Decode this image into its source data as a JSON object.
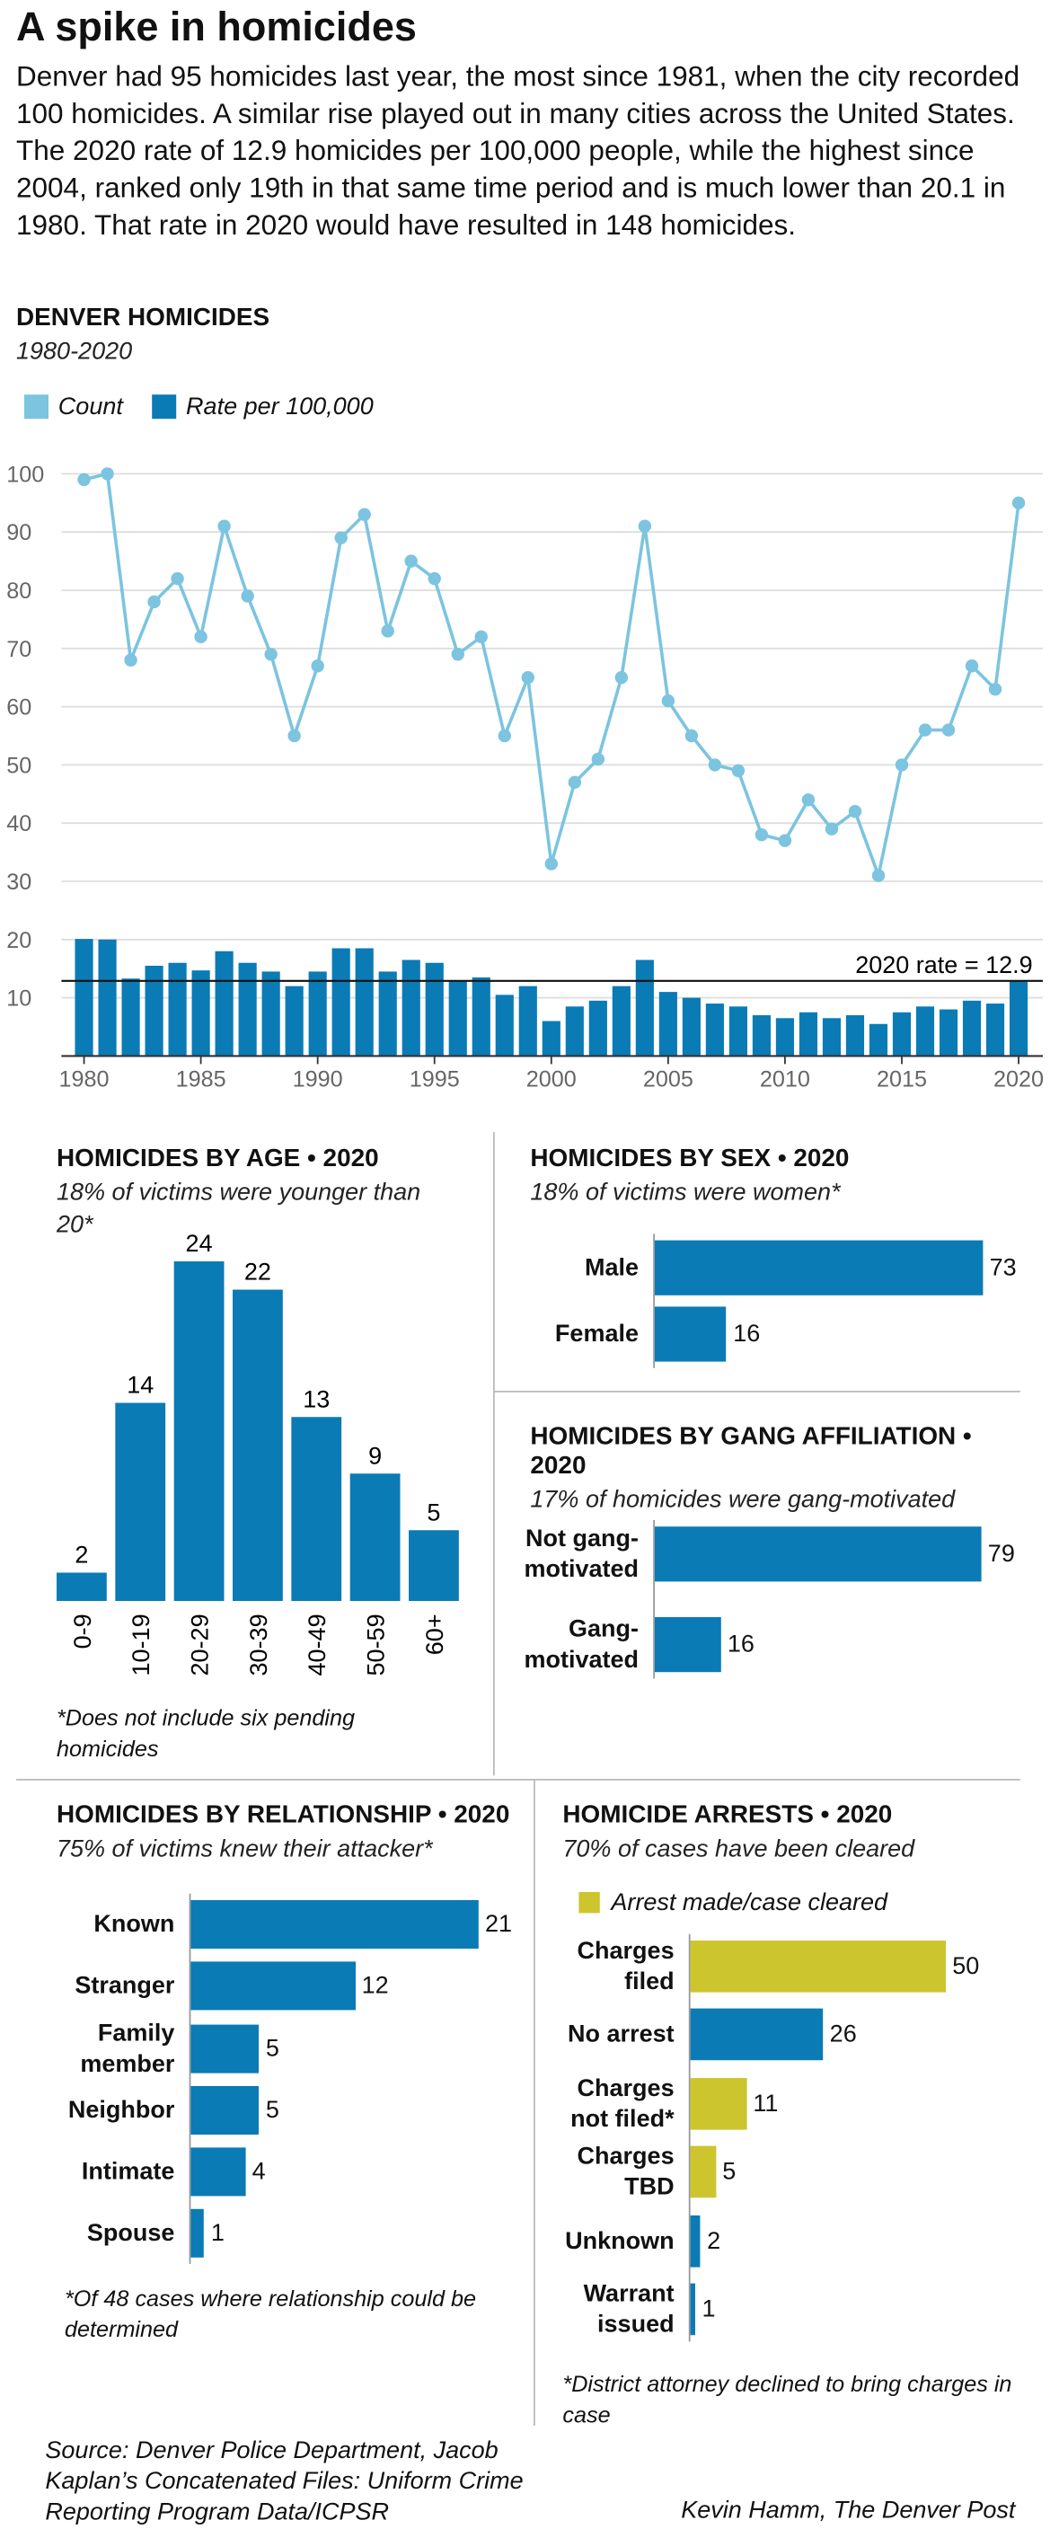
{
  "header": {
    "title": "A spike in homicides",
    "text": "Denver had 95 homicides last year, the most since 1981, when the city recorded 100 homicides. A similar rise played out in many cities across the United States. The 2020 rate of 12.9 homicides per 100,000 people, while the highest since 2004, ranked only 19th in that same time period and is much lower than 20.1 in 1980. That rate in 2020 would have resulted in 148 homicides."
  },
  "chart_data": [
    {
      "type": "combo",
      "title": "DENVER HOMICIDES",
      "subtitle": "1980-2020",
      "x": [
        1980,
        1981,
        1982,
        1983,
        1984,
        1985,
        1986,
        1987,
        1988,
        1989,
        1990,
        1991,
        1992,
        1993,
        1994,
        1995,
        1996,
        1997,
        1998,
        1999,
        2000,
        2001,
        2002,
        2003,
        2004,
        2005,
        2006,
        2007,
        2008,
        2009,
        2010,
        2011,
        2012,
        2013,
        2014,
        2015,
        2016,
        2017,
        2018,
        2019,
        2020
      ],
      "xlim": [
        1979.4,
        2020.6
      ],
      "xticks": [
        1980,
        1985,
        1990,
        1995,
        2000,
        2005,
        2010,
        2015,
        2020
      ],
      "ylim": [
        0,
        100
      ],
      "yticks": [
        10,
        20,
        30,
        40,
        50,
        60,
        70,
        80,
        90,
        100
      ],
      "grid": true,
      "series": [
        {
          "name": "Count",
          "color": "#7cc4e0",
          "type": "line",
          "values": [
            99,
            100,
            68,
            78,
            82,
            72,
            91,
            79,
            69,
            55,
            67,
            89,
            93,
            73,
            85,
            82,
            69,
            72,
            55,
            65,
            33,
            47,
            51,
            65,
            91,
            61,
            55,
            50,
            49,
            38,
            37,
            44,
            39,
            42,
            31,
            50,
            56,
            56,
            67,
            63,
            95
          ]
        },
        {
          "name": "Rate per 100,000",
          "color": "#0a7bb5",
          "type": "bar",
          "values": [
            20.1,
            20,
            13.3,
            15.5,
            16,
            14.7,
            18,
            16,
            14.5,
            12,
            14.5,
            18.5,
            18.5,
            14.5,
            16.5,
            16,
            13,
            13.5,
            10.5,
            12,
            6,
            8.5,
            9.5,
            12,
            16.5,
            11,
            10,
            9,
            8.5,
            7,
            6.5,
            7.5,
            6.5,
            7,
            5.5,
            7.5,
            8.5,
            8,
            9.5,
            9,
            12.9
          ]
        }
      ],
      "reference_line": {
        "value": 12.9,
        "label": "2020 rate = 12.9"
      }
    },
    {
      "type": "bar",
      "title": "HOMICIDES BY AGE • 2020",
      "subtitle": "18% of victims were younger than 20*",
      "categories": [
        "0-9",
        "10-19",
        "20-29",
        "30-39",
        "40-49",
        "50-59",
        "60+"
      ],
      "values": [
        2,
        14,
        24,
        22,
        13,
        9,
        5
      ],
      "color": "#0a7bb5",
      "note": "*Does not include six pending homicides"
    },
    {
      "type": "hbar",
      "title": "HOMICIDES BY SEX • 2020",
      "subtitle": "18% of victims were women*",
      "categories": [
        "Male",
        "Female"
      ],
      "values": [
        73,
        16
      ],
      "color": "#0a7bb5"
    },
    {
      "type": "hbar",
      "title": "HOMICIDES BY GANG AFFILIATION • 2020",
      "subtitle": "17% of homicides were gang-motivated",
      "categories": [
        "Not gang-motivated",
        "Gang-motivated"
      ],
      "values": [
        79,
        16
      ],
      "color": "#0a7bb5"
    },
    {
      "type": "hbar",
      "title": "HOMICIDES BY RELATIONSHIP • 2020",
      "subtitle": "75% of victims knew their attacker*",
      "categories": [
        "Known",
        "Stranger",
        "Family member",
        "Neighbor",
        "Intimate",
        "Spouse"
      ],
      "values": [
        21,
        12,
        5,
        5,
        4,
        1
      ],
      "color": "#0a7bb5",
      "note": "*Of 48 cases where relationship could be determined"
    },
    {
      "type": "hbar",
      "title": "HOMICIDE ARRESTS • 2020",
      "subtitle": "70% of cases have been cleared",
      "legend": {
        "label": "Arrest made/case cleared",
        "color": "#cdc52e"
      },
      "categories": [
        "Charges filed",
        "No arrest",
        "Charges not filed*",
        "Charges TBD",
        "Unknown",
        "Warrant issued"
      ],
      "values": [
        50,
        26,
        11,
        5,
        2,
        1
      ],
      "colors": [
        "#cdc52e",
        "#0a7bb5",
        "#cdc52e",
        "#cdc52e",
        "#0a7bb5",
        "#0a7bb5"
      ],
      "note": "*District attorney declined to bring charges in case"
    }
  ],
  "footer": {
    "source": "Source: Denver Police Department, Jacob Kaplan’s Concatenated Files: Uniform Crime Reporting Program Data/ICPSR",
    "credit": "Kevin Hamm, The Denver Post"
  }
}
